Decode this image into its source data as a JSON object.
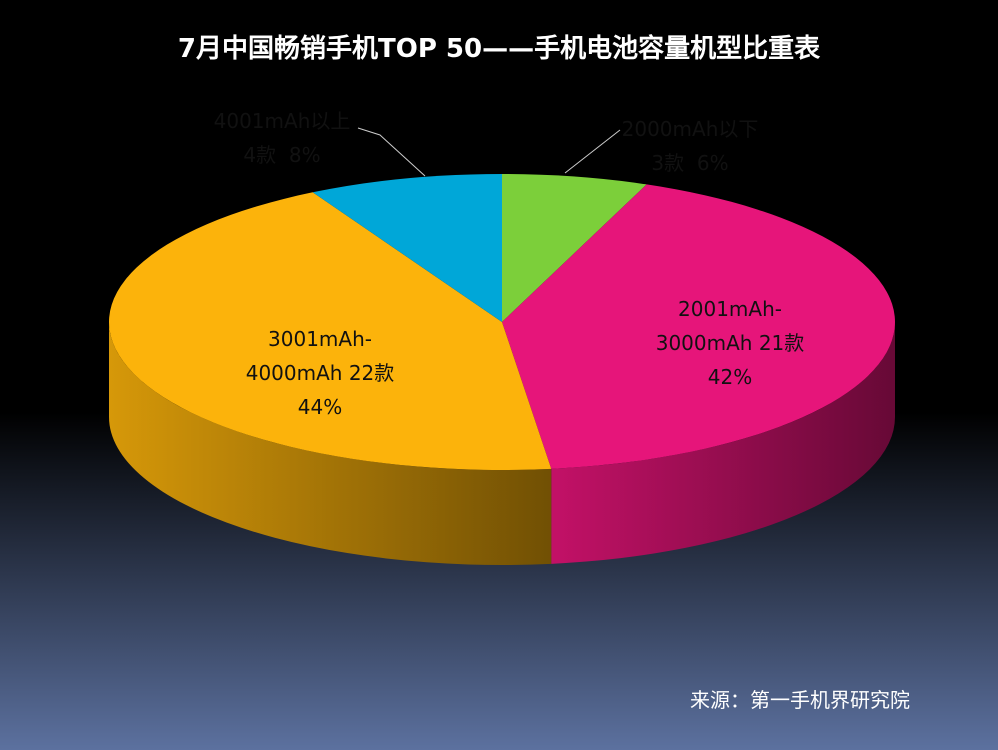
{
  "chart_data": {
    "type": "pie3d",
    "title": "7月中国畅销手机TOP 50——手机电池容量机型比重表",
    "categories": [
      "2000mAh以下",
      "2001mAh-3000mAh",
      "3001mAh-4000mAh",
      "4001mAh以上"
    ],
    "values": [
      6,
      42,
      44,
      8
    ],
    "value_labels": [
      "6%",
      "42%",
      "44%",
      "8%"
    ],
    "counts": [
      3,
      21,
      22,
      4
    ],
    "count_labels": [
      "3款",
      "21款",
      "22款",
      "4款"
    ],
    "colors": [
      "#7ccf3a",
      "#e6157a",
      "#fcb30b",
      "#00a7d8"
    ],
    "source": "来源：第一手机界研究院"
  }
}
